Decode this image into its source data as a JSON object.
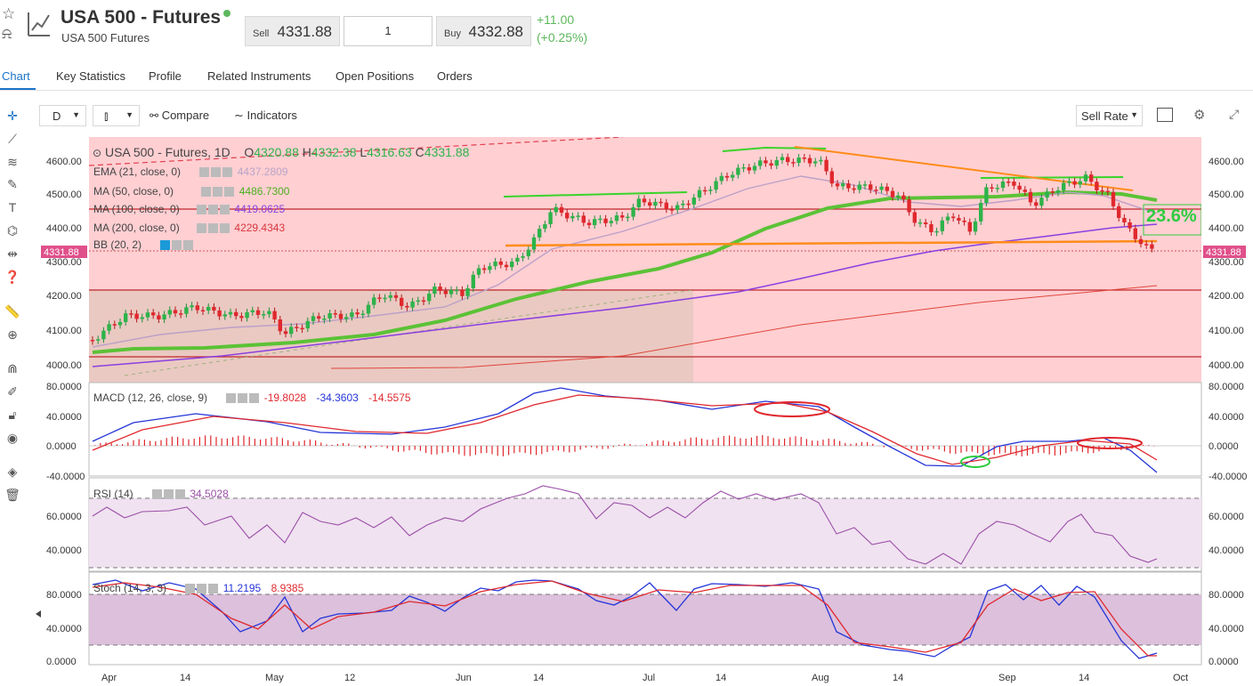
{
  "header": {
    "title": "USA 500 - Futures",
    "subtitle": "USA 500 Futures",
    "sell_label": "Sell",
    "sell_price": "4331.88",
    "quantity": "1",
    "buy_label": "Buy",
    "buy_price": "4332.88",
    "change_abs": "+11.00",
    "change_pct": "(+0.25%)",
    "status_color": "#5cb85c"
  },
  "tabs": [
    {
      "label": "Chart",
      "active": true
    },
    {
      "label": "Key Statistics"
    },
    {
      "label": "Profile"
    },
    {
      "label": "Related Instruments"
    },
    {
      "label": "Open Positions"
    },
    {
      "label": "Orders"
    }
  ],
  "toolbar": {
    "interval": "D",
    "compare_label": "Compare",
    "indicators_label": "Indicators",
    "rate_select": "Sell Rate"
  },
  "left_tools": [
    "crosshair-icon",
    "trendline-icon",
    "fib-icon",
    "brush-icon",
    "text-icon",
    "pattern-icon",
    "measure-icon",
    "help-icon",
    "ruler-icon",
    "zoom-icon",
    "magnet-icon",
    "lock-drawing-icon",
    "lock-icon",
    "eye-icon",
    "layers-icon",
    "trash-icon"
  ],
  "legend": {
    "symbol": "USA 500 - Futures, 1D",
    "o_label": "O",
    "o": "4320.88",
    "h_label": "H",
    "h": "4332.38",
    "l_label": "L",
    "l": "4316.63",
    "c_label": "C",
    "c": "4331.88",
    "ema": {
      "label": "EMA (21, close, 0)",
      "value": "4437.2809",
      "color": "#b9a4c8"
    },
    "ma50": {
      "label": "MA (50, close, 0)",
      "value": "4486.7300",
      "color": "#4caf1f"
    },
    "ma100": {
      "label": "MA (100, close, 0)",
      "value": "4419.0625",
      "color": "#8a3fe0"
    },
    "ma200": {
      "label": "MA (200, close, 0)",
      "value": "4229.4343",
      "color": "#d9363e"
    },
    "bb": {
      "label": "BB (20, 2)"
    }
  },
  "price_axis": [
    "4600.00",
    "4500.00",
    "4400.00",
    "4300.00",
    "4200.00",
    "4100.00",
    "4000.00"
  ],
  "current_price": "4331.88",
  "fib_label": "23.6%",
  "macd": {
    "label": "MACD (12, 26, close, 9)",
    "v1": "-19.8028",
    "v2": "-34.3603",
    "v3": "-14.5575",
    "ticks": [
      "80.0000",
      "40.0000",
      "0.0000",
      "-40.0000"
    ]
  },
  "rsi": {
    "label": "RSI (14)",
    "value": "34.5028",
    "ticks": [
      "60.0000",
      "40.0000"
    ]
  },
  "stoch": {
    "label": "Stoch (14, 3, 3)",
    "k": "11.2195",
    "d": "8.9385",
    "ticks": [
      "80.0000",
      "40.0000",
      "0.0000"
    ]
  },
  "x_axis": [
    "Apr",
    "14",
    "May",
    "12",
    "Jun",
    "14",
    "Jul",
    "14",
    "Aug",
    "14",
    "Sep",
    "14",
    "Oct"
  ],
  "colors": {
    "accent": "#1a73c9",
    "up": "#2db34a",
    "down": "#e0282d",
    "bg_panel": "#ffcfd2"
  }
}
